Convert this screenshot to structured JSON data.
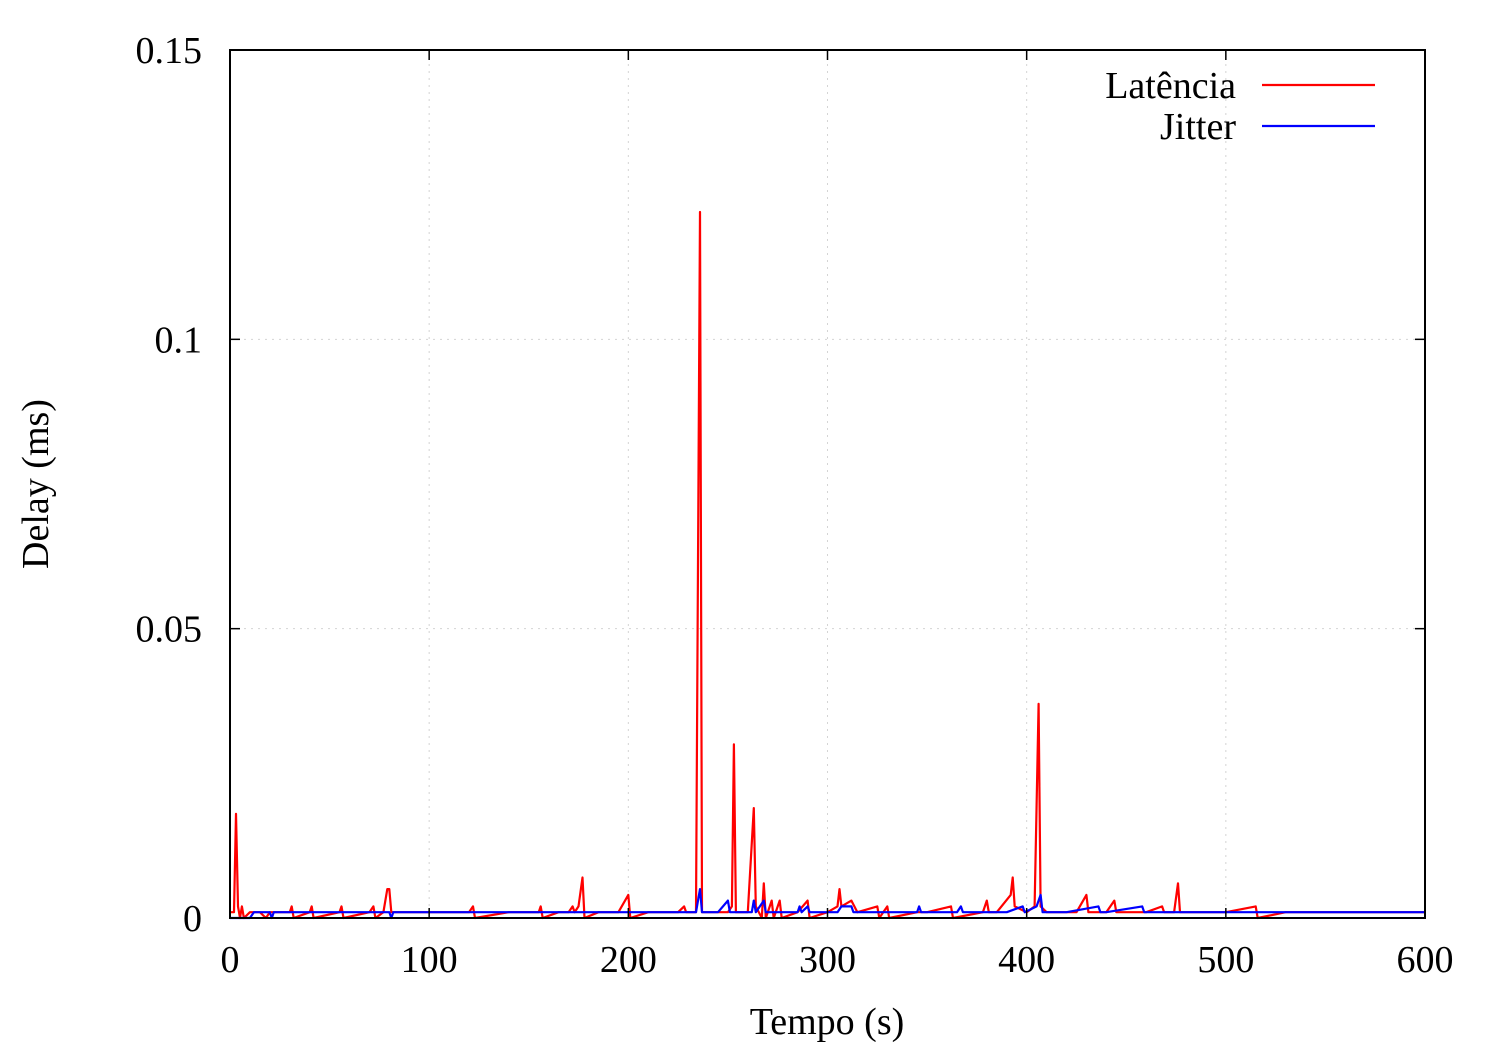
{
  "chart_data": {
    "type": "line",
    "title": "",
    "xlabel": "Tempo (s)",
    "ylabel": "Delay (ms)",
    "xlim": [
      0,
      600
    ],
    "ylim": [
      0,
      0.15
    ],
    "x_ticks": [
      "0",
      "100",
      "200",
      "300",
      "400",
      "500",
      "600"
    ],
    "y_ticks": [
      "0",
      "0.05",
      "0.1",
      "0.15"
    ],
    "x_tick_values": [
      0,
      100,
      200,
      300,
      400,
      500,
      600
    ],
    "y_tick_values": [
      0,
      0.05,
      0.1,
      0.15
    ],
    "grid": true,
    "legend_position": "top-right",
    "series": [
      {
        "name": "Latência",
        "color": "#ff0000",
        "points": [
          [
            0,
            0.001
          ],
          [
            2,
            0.001
          ],
          [
            3,
            0.018
          ],
          [
            4,
            0.002
          ],
          [
            5,
            0.0
          ],
          [
            6,
            0.002
          ],
          [
            7,
            0.0
          ],
          [
            10,
            0.001
          ],
          [
            15,
            0.001
          ],
          [
            18,
            0.0
          ],
          [
            20,
            0.001
          ],
          [
            30,
            0.001
          ],
          [
            31,
            0.002
          ],
          [
            32,
            0.0
          ],
          [
            40,
            0.001
          ],
          [
            41,
            0.002
          ],
          [
            42,
            0.0
          ],
          [
            55,
            0.001
          ],
          [
            56,
            0.002
          ],
          [
            57,
            0.0
          ],
          [
            70,
            0.001
          ],
          [
            72,
            0.002
          ],
          [
            73,
            0.0
          ],
          [
            77,
            0.001
          ],
          [
            79,
            0.005
          ],
          [
            80,
            0.005
          ],
          [
            81,
            0.001
          ],
          [
            85,
            0.001
          ],
          [
            100,
            0.001
          ],
          [
            120,
            0.001
          ],
          [
            122,
            0.002
          ],
          [
            123,
            0.0
          ],
          [
            140,
            0.001
          ],
          [
            155,
            0.001
          ],
          [
            156,
            0.002
          ],
          [
            157,
            0.0
          ],
          [
            165,
            0.001
          ],
          [
            170,
            0.001
          ],
          [
            172,
            0.002
          ],
          [
            173,
            0.001
          ],
          [
            175,
            0.002
          ],
          [
            177,
            0.007
          ],
          [
            178,
            0.0
          ],
          [
            185,
            0.001
          ],
          [
            195,
            0.001
          ],
          [
            200,
            0.004
          ],
          [
            201,
            0.0
          ],
          [
            210,
            0.001
          ],
          [
            225,
            0.001
          ],
          [
            228,
            0.002
          ],
          [
            229,
            0.001
          ],
          [
            234,
            0.001
          ],
          [
            236,
            0.122
          ],
          [
            237,
            0.001
          ],
          [
            245,
            0.001
          ],
          [
            250,
            0.001
          ],
          [
            252,
            0.002
          ],
          [
            253,
            0.03
          ],
          [
            254,
            0.001
          ],
          [
            260,
            0.001
          ],
          [
            263,
            0.019
          ],
          [
            264,
            0.002
          ],
          [
            267,
            0.0
          ],
          [
            268,
            0.006
          ],
          [
            269,
            0.0
          ],
          [
            272,
            0.003
          ],
          [
            273,
            0.0
          ],
          [
            276,
            0.003
          ],
          [
            277,
            0.0
          ],
          [
            285,
            0.001
          ],
          [
            290,
            0.003
          ],
          [
            291,
            0.0
          ],
          [
            300,
            0.001
          ],
          [
            305,
            0.002
          ],
          [
            306,
            0.005
          ],
          [
            307,
            0.002
          ],
          [
            312,
            0.003
          ],
          [
            315,
            0.001
          ],
          [
            325,
            0.002
          ],
          [
            326,
            0.0
          ],
          [
            330,
            0.002
          ],
          [
            331,
            0.0
          ],
          [
            345,
            0.001
          ],
          [
            350,
            0.001
          ],
          [
            362,
            0.002
          ],
          [
            363,
            0.0
          ],
          [
            378,
            0.001
          ],
          [
            380,
            0.003
          ],
          [
            381,
            0.001
          ],
          [
            385,
            0.001
          ],
          [
            392,
            0.004
          ],
          [
            393,
            0.007
          ],
          [
            394,
            0.002
          ],
          [
            400,
            0.001
          ],
          [
            404,
            0.002
          ],
          [
            406,
            0.037
          ],
          [
            407,
            0.002
          ],
          [
            410,
            0.001
          ],
          [
            425,
            0.001
          ],
          [
            430,
            0.004
          ],
          [
            431,
            0.001
          ],
          [
            440,
            0.001
          ],
          [
            444,
            0.003
          ],
          [
            445,
            0.001
          ],
          [
            450,
            0.001
          ],
          [
            455,
            0.001
          ],
          [
            460,
            0.001
          ],
          [
            468,
            0.002
          ],
          [
            469,
            0.001
          ],
          [
            474,
            0.001
          ],
          [
            476,
            0.006
          ],
          [
            477,
            0.001
          ],
          [
            490,
            0.001
          ],
          [
            500,
            0.001
          ],
          [
            515,
            0.002
          ],
          [
            516,
            0.0
          ],
          [
            530,
            0.001
          ],
          [
            550,
            0.001
          ],
          [
            570,
            0.001
          ],
          [
            585,
            0.001
          ],
          [
            600,
            0.001
          ]
        ]
      },
      {
        "name": "Jitter",
        "color": "#0000ff",
        "points": [
          [
            0,
            0.0
          ],
          [
            10,
            0.0
          ],
          [
            12,
            0.001
          ],
          [
            20,
            0.001
          ],
          [
            21,
            0.0
          ],
          [
            22,
            0.001
          ],
          [
            40,
            0.001
          ],
          [
            45,
            0.001
          ],
          [
            60,
            0.001
          ],
          [
            80,
            0.001
          ],
          [
            81,
            0.0
          ],
          [
            82,
            0.001
          ],
          [
            100,
            0.001
          ],
          [
            120,
            0.001
          ],
          [
            150,
            0.001
          ],
          [
            180,
            0.001
          ],
          [
            200,
            0.001
          ],
          [
            220,
            0.001
          ],
          [
            234,
            0.001
          ],
          [
            236,
            0.005
          ],
          [
            237,
            0.001
          ],
          [
            245,
            0.001
          ],
          [
            250,
            0.003
          ],
          [
            251,
            0.001
          ],
          [
            262,
            0.001
          ],
          [
            263,
            0.003
          ],
          [
            264,
            0.001
          ],
          [
            268,
            0.003
          ],
          [
            269,
            0.001
          ],
          [
            285,
            0.001
          ],
          [
            286,
            0.002
          ],
          [
            287,
            0.001
          ],
          [
            290,
            0.002
          ],
          [
            291,
            0.001
          ],
          [
            305,
            0.001
          ],
          [
            307,
            0.002
          ],
          [
            312,
            0.002
          ],
          [
            313,
            0.001
          ],
          [
            330,
            0.001
          ],
          [
            345,
            0.001
          ],
          [
            346,
            0.002
          ],
          [
            347,
            0.001
          ],
          [
            365,
            0.001
          ],
          [
            367,
            0.002
          ],
          [
            368,
            0.001
          ],
          [
            390,
            0.001
          ],
          [
            398,
            0.002
          ],
          [
            399,
            0.001
          ],
          [
            405,
            0.002
          ],
          [
            407,
            0.004
          ],
          [
            408,
            0.001
          ],
          [
            420,
            0.001
          ],
          [
            436,
            0.002
          ],
          [
            437,
            0.001
          ],
          [
            440,
            0.001
          ],
          [
            458,
            0.002
          ],
          [
            459,
            0.001
          ],
          [
            480,
            0.001
          ],
          [
            500,
            0.001
          ],
          [
            520,
            0.001
          ],
          [
            540,
            0.001
          ],
          [
            560,
            0.001
          ],
          [
            580,
            0.001
          ],
          [
            600,
            0.001
          ]
        ]
      }
    ]
  }
}
